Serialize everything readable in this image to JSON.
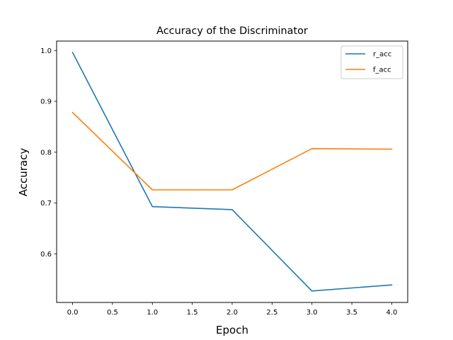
{
  "chart_data": {
    "type": "line",
    "title": "Accuracy of the Discriminator",
    "xlabel": "Epoch",
    "ylabel": "Accuracy",
    "x": [
      0,
      1,
      2,
      3,
      4
    ],
    "xlim": [
      -0.2,
      4.2
    ],
    "ylim": [
      0.5045,
      1.0185
    ],
    "xticks": [
      "0.0",
      "0.5",
      "1.0",
      "1.5",
      "2.0",
      "2.5",
      "3.0",
      "3.5",
      "4.0"
    ],
    "yticks": [
      "0.6",
      "0.7",
      "0.8",
      "0.9",
      "1.0"
    ],
    "grid": false,
    "legend_position": "top-right",
    "series": [
      {
        "name": "r_acc",
        "color": "#1f77b4",
        "values": [
          0.996,
          0.693,
          0.687,
          0.527,
          0.539
        ]
      },
      {
        "name": "f_acc",
        "color": "#ff7f0e",
        "values": [
          0.878,
          0.726,
          0.726,
          0.807,
          0.806
        ]
      }
    ]
  }
}
